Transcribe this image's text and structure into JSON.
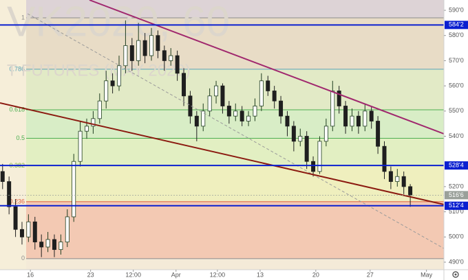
{
  "chart_data": {
    "type": "candlestick",
    "watermark": "VK2020, 60",
    "watermark_sub": "T FUTURES (MAY 2020)",
    "up_color": "#1f3d1f",
    "down_color": "#1f1f1f",
    "ylim": [
      4870,
      5941
    ],
    "yticks": [
      {
        "value": 5900,
        "label": "590'0"
      },
      {
        "value": 5800,
        "label": "580'0"
      },
      {
        "value": 5700,
        "label": "570'0"
      },
      {
        "value": 5600,
        "label": "560'0"
      },
      {
        "value": 5500,
        "label": "550'0"
      },
      {
        "value": 5400,
        "label": "540'0"
      },
      {
        "value": 5200,
        "label": "520'0"
      },
      {
        "value": 5100,
        "label": "510'0"
      },
      {
        "value": 5000,
        "label": "500'0"
      },
      {
        "value": 4900,
        "label": "490'0"
      }
    ],
    "xlim": [
      -0.4,
      68.2
    ],
    "xticks": [
      {
        "value": 4.3,
        "label": "16"
      },
      {
        "value": 13.6,
        "label": "23"
      },
      {
        "value": 20.2,
        "label": "12:00"
      },
      {
        "value": 26.8,
        "label": "Apr"
      },
      {
        "value": 33.2,
        "label": "12:00"
      },
      {
        "value": 39.8,
        "label": "13"
      },
      {
        "value": 48.4,
        "label": "20"
      },
      {
        "value": 56.8,
        "label": "27"
      },
      {
        "value": 65.5,
        "label": "May"
      }
    ],
    "price_labels": [
      {
        "value": 5842,
        "label": "584'2",
        "color": "#0a1fd0",
        "line": true
      },
      {
        "value": 5284,
        "label": "528'4",
        "color": "#0a1fd0",
        "line": true
      },
      {
        "value": 5166,
        "label": "516'6",
        "color": "#9aa09a",
        "line": false
      },
      {
        "value": 5124,
        "label": "512'4",
        "color": "#0a1fd0",
        "line": true
      }
    ],
    "fib_levels": [
      {
        "ratio": "1",
        "price": 5870,
        "color": "#8c8c8c",
        "fill": "#e8dcc6"
      },
      {
        "ratio": "0.786",
        "price": 5666,
        "color": "#59a3b8",
        "fill": "#e2eac6"
      },
      {
        "ratio": "0.618",
        "price": 5505,
        "color": "#4caf50",
        "fill": "#d8edc6"
      },
      {
        "ratio": "0.5",
        "price": 5392,
        "color": "#4caf50",
        "fill": "#e2efc2"
      },
      {
        "ratio": "0.382",
        "price": 5283,
        "color": "#7cb342",
        "fill": "#efefbe"
      },
      {
        "ratio": "0.236",
        "price": 5140,
        "color": "#e05a3a",
        "fill": "#f3c9b3"
      },
      {
        "ratio": "0",
        "price": 4914,
        "color": "#8c8c8c",
        "fill": "#f4ead8"
      }
    ],
    "ohlc": [
      [
        5260,
        5290,
        5190,
        5220
      ],
      [
        5220,
        5240,
        5090,
        5120
      ],
      [
        5120,
        5150,
        5000,
        5030
      ],
      [
        5030,
        5060,
        4970,
        5000
      ],
      [
        5000,
        5090,
        4980,
        5060
      ],
      [
        5060,
        5080,
        4950,
        4980
      ],
      [
        4980,
        5010,
        4920,
        4960
      ],
      [
        4960,
        5020,
        4940,
        4990
      ],
      [
        4990,
        5010,
        4920,
        4950
      ],
      [
        4950,
        5010,
        4930,
        4980
      ],
      [
        4980,
        5110,
        4960,
        5080
      ],
      [
        5080,
        5330,
        5060,
        5300
      ],
      [
        5300,
        5460,
        5280,
        5420
      ],
      [
        5420,
        5470,
        5390,
        5440
      ],
      [
        5440,
        5500,
        5410,
        5470
      ],
      [
        5470,
        5570,
        5450,
        5540
      ],
      [
        5540,
        5660,
        5510,
        5620
      ],
      [
        5620,
        5650,
        5570,
        5600
      ],
      [
        5600,
        5720,
        5580,
        5680
      ],
      [
        5680,
        5860,
        5650,
        5760
      ],
      [
        5760,
        5790,
        5660,
        5700
      ],
      [
        5700,
        5850,
        5680,
        5780
      ],
      [
        5780,
        5810,
        5690,
        5720
      ],
      [
        5720,
        5830,
        5700,
        5800
      ],
      [
        5800,
        5820,
        5710,
        5740
      ],
      [
        5740,
        5760,
        5660,
        5700
      ],
      [
        5700,
        5750,
        5680,
        5720
      ],
      [
        5720,
        5740,
        5620,
        5650
      ],
      [
        5650,
        5670,
        5520,
        5560
      ],
      [
        5560,
        5580,
        5450,
        5480
      ],
      [
        5480,
        5500,
        5380,
        5440
      ],
      [
        5440,
        5530,
        5420,
        5500
      ],
      [
        5500,
        5590,
        5480,
        5560
      ],
      [
        5560,
        5620,
        5530,
        5600
      ],
      [
        5600,
        5610,
        5490,
        5520
      ],
      [
        5520,
        5540,
        5450,
        5480
      ],
      [
        5480,
        5530,
        5460,
        5500
      ],
      [
        5500,
        5520,
        5440,
        5460
      ],
      [
        5460,
        5500,
        5440,
        5480
      ],
      [
        5480,
        5550,
        5460,
        5520
      ],
      [
        5520,
        5650,
        5500,
        5620
      ],
      [
        5620,
        5640,
        5560,
        5580
      ],
      [
        5580,
        5600,
        5510,
        5540
      ],
      [
        5540,
        5560,
        5450,
        5480
      ],
      [
        5480,
        5500,
        5400,
        5440
      ],
      [
        5440,
        5460,
        5340,
        5380
      ],
      [
        5380,
        5430,
        5360,
        5400
      ],
      [
        5400,
        5420,
        5270,
        5300
      ],
      [
        5300,
        5320,
        5240,
        5260
      ],
      [
        5260,
        5400,
        5250,
        5380
      ],
      [
        5380,
        5470,
        5360,
        5440
      ],
      [
        5440,
        5620,
        5420,
        5580
      ],
      [
        5580,
        5600,
        5490,
        5520
      ],
      [
        5520,
        5540,
        5410,
        5440
      ],
      [
        5440,
        5510,
        5420,
        5480
      ],
      [
        5480,
        5500,
        5410,
        5440
      ],
      [
        5440,
        5530,
        5420,
        5500
      ],
      [
        5500,
        5520,
        5430,
        5460
      ],
      [
        5460,
        5480,
        5330,
        5360
      ],
      [
        5360,
        5380,
        5230,
        5260
      ],
      [
        5260,
        5280,
        5190,
        5220
      ],
      [
        5220,
        5270,
        5200,
        5240
      ],
      [
        5240,
        5260,
        5170,
        5200
      ],
      [
        5200,
        5210,
        5120,
        5166
      ]
    ]
  }
}
